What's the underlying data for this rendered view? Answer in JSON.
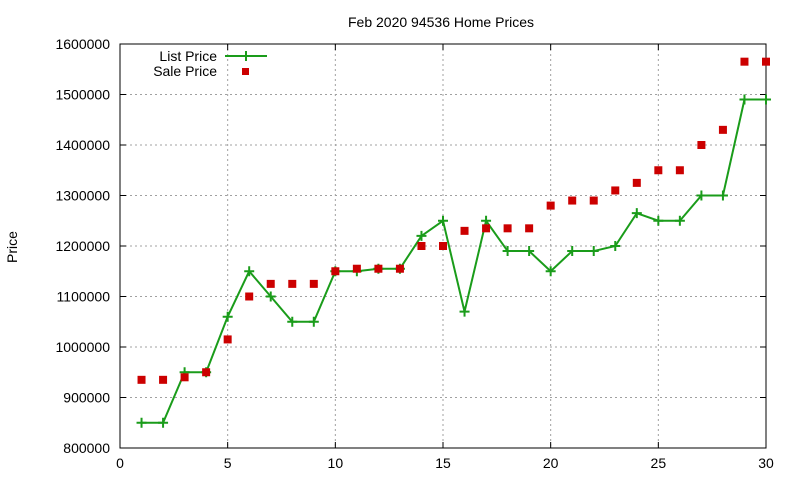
{
  "chart_data": {
    "type": "line",
    "title": "Feb 2020 94536 Home Prices",
    "xlabel": "",
    "ylabel": "Price",
    "xlim": [
      0,
      30
    ],
    "ylim": [
      800000,
      1600000
    ],
    "x_ticks": [
      0,
      5,
      10,
      15,
      20,
      25,
      30
    ],
    "y_ticks": [
      800000,
      900000,
      1000000,
      1100000,
      1200000,
      1300000,
      1400000,
      1500000,
      1600000
    ],
    "grid": true,
    "legend_position": "top-left",
    "series": [
      {
        "name": "List Price",
        "style": "line-with-plus-markers",
        "color": "#1a9c1a",
        "x": [
          1,
          2,
          3,
          4,
          5,
          6,
          7,
          8,
          9,
          10,
          11,
          12,
          13,
          14,
          15,
          16,
          17,
          18,
          19,
          20,
          21,
          22,
          23,
          24,
          25,
          26,
          27,
          28,
          29,
          30
        ],
        "values": [
          850000,
          850000,
          950000,
          950000,
          1060000,
          1150000,
          1100000,
          1050000,
          1050000,
          1150000,
          1150000,
          1155000,
          1155000,
          1220000,
          1250000,
          1070000,
          1250000,
          1190000,
          1190000,
          1150000,
          1190000,
          1190000,
          1200000,
          1265000,
          1250000,
          1250000,
          1300000,
          1300000,
          1490000,
          1490000
        ]
      },
      {
        "name": "Sale Price",
        "style": "square-markers",
        "color": "#cc0000",
        "x": [
          1,
          2,
          3,
          4,
          5,
          6,
          7,
          8,
          9,
          10,
          11,
          12,
          13,
          14,
          15,
          16,
          17,
          18,
          19,
          20,
          21,
          22,
          23,
          24,
          25,
          26,
          27,
          28,
          29,
          30
        ],
        "values": [
          935000,
          935000,
          940000,
          950000,
          1015000,
          1100000,
          1125000,
          1125000,
          1125000,
          1150000,
          1155000,
          1155000,
          1155000,
          1200000,
          1200000,
          1230000,
          1235000,
          1235000,
          1235000,
          1280000,
          1290000,
          1290000,
          1310000,
          1325000,
          1350000,
          1350000,
          1400000,
          1430000,
          1565000,
          1565000
        ]
      }
    ]
  }
}
